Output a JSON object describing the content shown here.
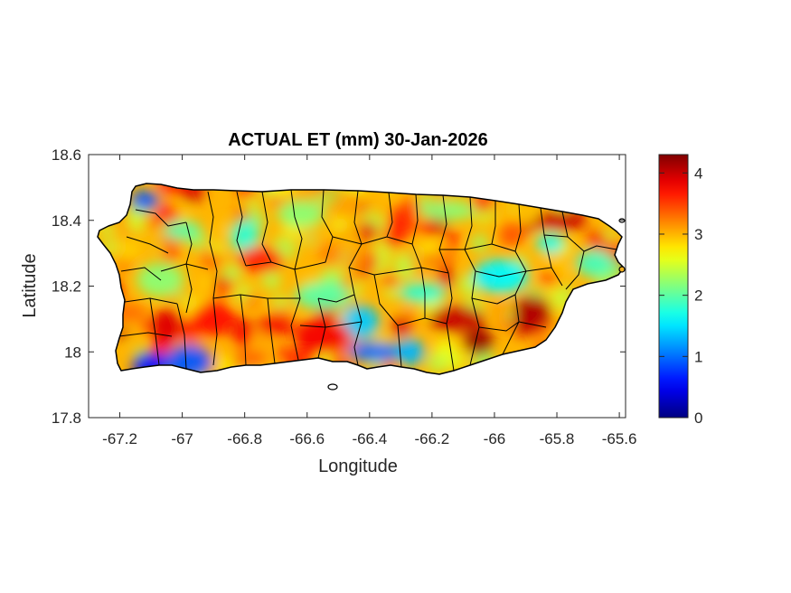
{
  "chart_data": {
    "type": "heatmap",
    "title": "ACTUAL ET (mm) 30-Jan-2026",
    "xlabel": "Longitude",
    "ylabel": "Latitude",
    "xlim": [
      -67.3,
      -65.58
    ],
    "ylim": [
      17.8,
      18.6
    ],
    "xticks": [
      -67.2,
      -67,
      -66.8,
      -66.6,
      -66.4,
      -66.2,
      -66,
      -65.8,
      -65.6
    ],
    "xtick_labels": [
      "-67.2",
      "-67",
      "-66.8",
      "-66.6",
      "-66.4",
      "-66.2",
      "-66",
      "-65.8",
      "-65.6"
    ],
    "yticks": [
      17.8,
      18,
      18.2,
      18.4,
      18.6
    ],
    "ytick_labels": [
      "17.8",
      "18",
      "18.2",
      "18.4",
      "18.6"
    ],
    "colorbar": {
      "colormap": "jet",
      "range": [
        0,
        4.3
      ],
      "ticks": [
        0,
        1,
        2,
        3,
        4
      ],
      "tick_labels": [
        "0",
        "1",
        "2",
        "3",
        "4"
      ]
    },
    "grid": false,
    "region": "Puerto Rico municipalities",
    "hotspots": [
      {
        "lon": -67.12,
        "lat": 18.46,
        "value": 0.9
      },
      {
        "lon": -67.1,
        "lat": 17.96,
        "value": 0.6
      },
      {
        "lon": -66.98,
        "lat": 17.97,
        "value": 0.9
      },
      {
        "lon": -66.38,
        "lat": 18.0,
        "value": 1.0
      },
      {
        "lon": -66.27,
        "lat": 18.0,
        "value": 1.3
      },
      {
        "lon": -66.43,
        "lat": 18.09,
        "value": 1.4
      },
      {
        "lon": -66.23,
        "lat": 18.18,
        "value": 1.8
      },
      {
        "lon": -66.55,
        "lat": 18.17,
        "value": 2.0
      },
      {
        "lon": -66.8,
        "lat": 18.35,
        "value": 1.8
      },
      {
        "lon": -67.0,
        "lat": 18.37,
        "value": 2.0
      },
      {
        "lon": -66.62,
        "lat": 18.42,
        "value": 2.2
      },
      {
        "lon": -65.98,
        "lat": 18.23,
        "value": 1.6
      },
      {
        "lon": -65.82,
        "lat": 18.33,
        "value": 1.7
      },
      {
        "lon": -65.68,
        "lat": 18.27,
        "value": 1.9
      },
      {
        "lon": -67.07,
        "lat": 18.22,
        "value": 2.2
      },
      {
        "lon": -66.15,
        "lat": 18.43,
        "value": 2.2
      },
      {
        "lon": -66.05,
        "lat": 18.03,
        "value": 4.2
      },
      {
        "lon": -65.88,
        "lat": 18.12,
        "value": 4.1
      },
      {
        "lon": -65.8,
        "lat": 18.4,
        "value": 4.0
      },
      {
        "lon": -66.12,
        "lat": 18.1,
        "value": 4.0
      },
      {
        "lon": -67.05,
        "lat": 18.08,
        "value": 3.9
      },
      {
        "lon": -66.7,
        "lat": 18.08,
        "value": 3.8
      },
      {
        "lon": -66.75,
        "lat": 18.28,
        "value": 3.6
      },
      {
        "lon": -66.55,
        "lat": 18.05,
        "value": 3.8
      },
      {
        "lon": -66.3,
        "lat": 18.38,
        "value": 3.6
      },
      {
        "lon": -65.7,
        "lat": 18.08,
        "value": 3.8
      },
      {
        "lon": -66.9,
        "lat": 18.1,
        "value": 3.7
      },
      {
        "lon": -67.2,
        "lat": 18.12,
        "value": 3.3
      }
    ]
  }
}
